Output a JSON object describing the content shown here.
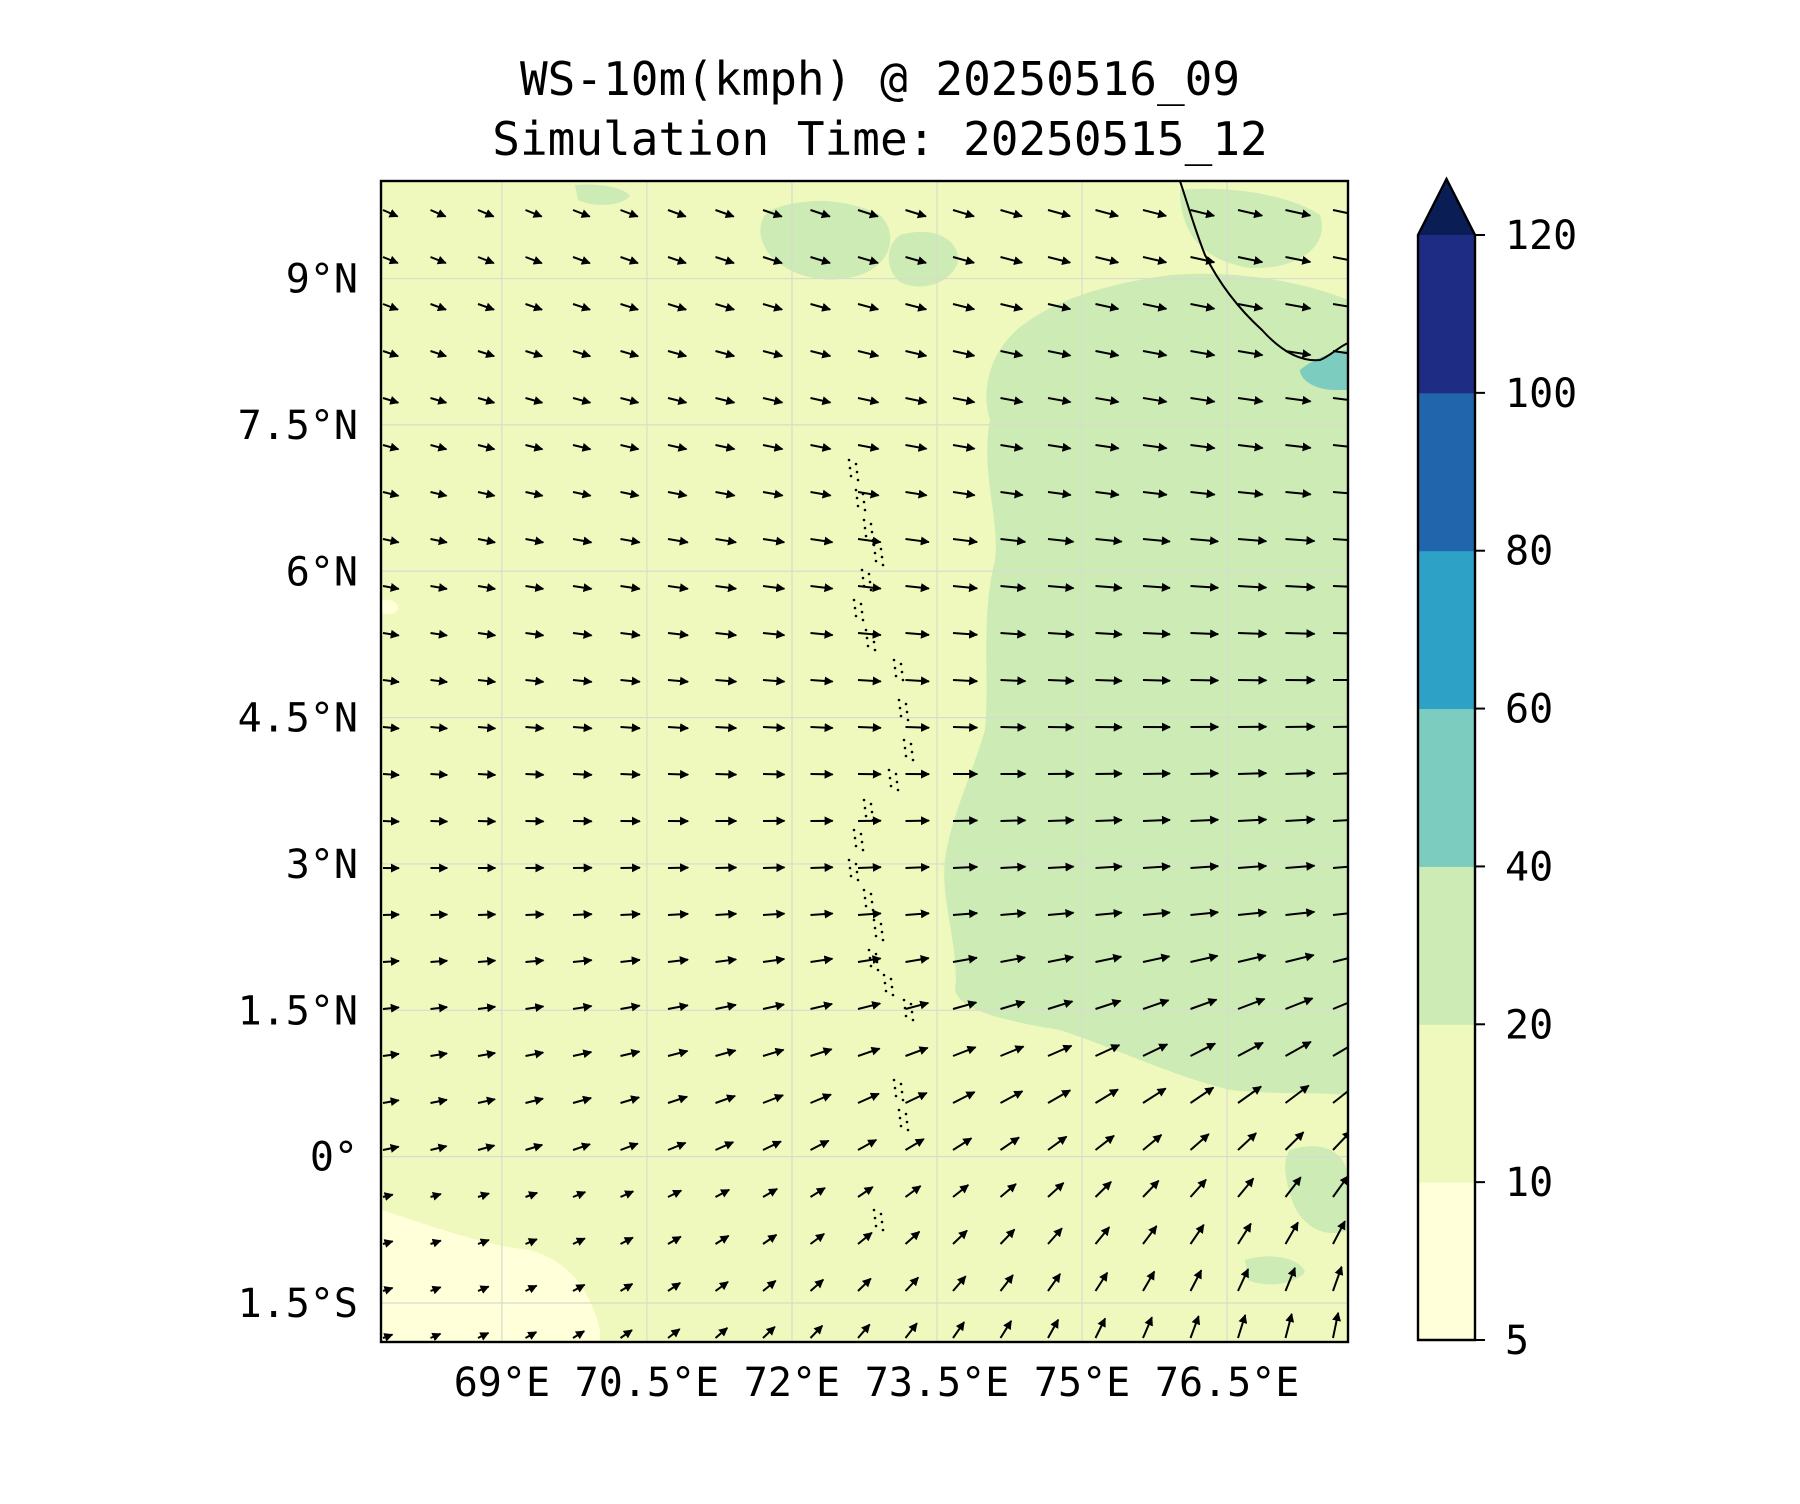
{
  "title": "WS-10m(kmph) @ 20250516_09",
  "subtitle": "Simulation Time: 20250515_12",
  "map": {
    "lon_range": [
      67.75,
      77.75
    ],
    "lat_range": [
      -1.9,
      10.0
    ],
    "x_ticks": [
      {
        "value": 69.0,
        "label": "69°E"
      },
      {
        "value": 70.5,
        "label": "70.5°E"
      },
      {
        "value": 72.0,
        "label": "72°E"
      },
      {
        "value": 73.5,
        "label": "73.5°E"
      },
      {
        "value": 75.0,
        "label": "75°E"
      },
      {
        "value": 76.5,
        "label": "76.5°E"
      }
    ],
    "y_ticks": [
      {
        "value": 9.0,
        "label": "9°N"
      },
      {
        "value": 7.5,
        "label": "7.5°N"
      },
      {
        "value": 6.0,
        "label": "6°N"
      },
      {
        "value": 4.5,
        "label": "4.5°N"
      },
      {
        "value": 3.0,
        "label": "3°N"
      },
      {
        "value": 1.5,
        "label": "1.5°N"
      },
      {
        "value": 0.0,
        "label": "0°"
      },
      {
        "value": -1.5,
        "label": "1.5°S"
      }
    ],
    "gridlines": true,
    "field": "10 m wind speed (kmph) filled contours with wind vectors"
  },
  "colorbar": {
    "orientation": "vertical",
    "extend": "max",
    "levels": [
      5,
      10,
      20,
      40,
      60,
      80,
      100,
      120
    ],
    "tick_labels": [
      "5",
      "10",
      "20",
      "40",
      "60",
      "80",
      "100",
      "120"
    ],
    "colors": [
      "#ffffd9",
      "#f0f9bd",
      "#cdebb4",
      "#7cccbf",
      "#2ea1c7",
      "#2165ad",
      "#1f2c83",
      "#0a1e55"
    ]
  }
}
